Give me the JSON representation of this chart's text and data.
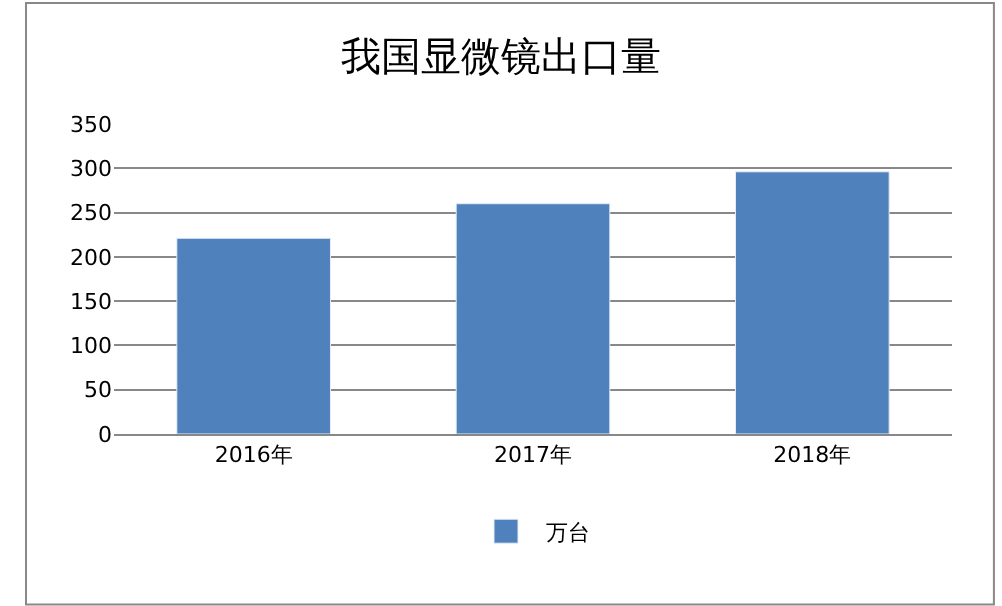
{
  "chart_data": {
    "type": "bar",
    "title": "我国显微镜出口量",
    "categories": [
      "2016年",
      "2017年",
      "2018年"
    ],
    "series": [
      {
        "name": "万台",
        "color": "#4f81bd",
        "values": [
          221,
          260,
          296
        ]
      }
    ],
    "ylim": [
      0,
      350
    ],
    "yticks": [
      0,
      50,
      100,
      150,
      200,
      250,
      300,
      350
    ],
    "grid": "y",
    "legend": "bottom"
  }
}
